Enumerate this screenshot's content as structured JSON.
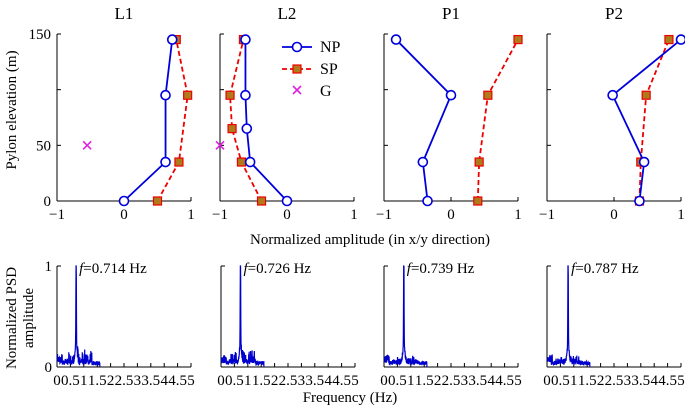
{
  "chart_data": {
    "type": "line",
    "shared": {
      "top_xlabel": "Normalized amplitude (in x/y direction)",
      "top_ylabel": "Pylon elevation (m)",
      "bottom_xlabel": "Frequency (Hz)",
      "bottom_ylabel_line1": "Normalized PSD",
      "bottom_ylabel_line2": "amplitude",
      "legend": [
        {
          "key": "np",
          "label": "NP"
        },
        {
          "key": "sp",
          "label": "SP"
        },
        {
          "key": "g",
          "label": "G"
        }
      ],
      "colors": {
        "np": "#0000dd",
        "sp": "#ee0000",
        "sp_fill": "#b07a1a",
        "g": "#e020e0",
        "psd": "#0000cc"
      },
      "top_ylim": [
        0,
        150
      ],
      "top_yticks": [
        0,
        50,
        100,
        150
      ],
      "top_ytick_labels": [
        "0",
        "50",
        "",
        "150"
      ],
      "bottom_xlim": [
        0,
        5
      ],
      "bottom_xticks": [
        "0",
        "0.5",
        "1",
        "1.5",
        "2",
        "2.5",
        "3",
        "3.5",
        "4",
        "4.5",
        "5"
      ],
      "bottom_ylim": [
        0,
        1
      ],
      "bottom_ytick_labels": [
        "0",
        "1"
      ]
    },
    "panels": [
      {
        "title": "L1",
        "xlim": [
          -1,
          1
        ],
        "xticks": [
          "−1",
          "0",
          "1"
        ],
        "np": {
          "x": [
            0,
            0.62,
            0.62,
            0.72
          ],
          "y": [
            0,
            35,
            95,
            145
          ]
        },
        "sp": {
          "x": [
            0.5,
            0.82,
            0.95,
            0.78
          ],
          "y": [
            0,
            35,
            95,
            145
          ]
        },
        "g": {
          "x": [
            -0.55
          ],
          "y": [
            50
          ]
        },
        "freq_prefix": "f",
        "freq_text": "=0.714 Hz",
        "peak_hz": 0.714
      },
      {
        "title": "L2",
        "xlim": [
          -1,
          1
        ],
        "xticks": [
          "−1",
          "0",
          "1"
        ],
        "np": {
          "x": [
            0,
            -0.55,
            -0.6,
            -0.62,
            -0.62
          ],
          "y": [
            0,
            35,
            65,
            95,
            145
          ]
        },
        "sp": {
          "x": [
            -0.38,
            -0.68,
            -0.82,
            -0.85,
            -0.65
          ],
          "y": [
            0,
            35,
            65,
            95,
            145
          ]
        },
        "g": {
          "x": [
            -1.0
          ],
          "y": [
            50
          ]
        },
        "freq_prefix": "f",
        "freq_text": "=0.726 Hz",
        "peak_hz": 0.726
      },
      {
        "title": "P1",
        "xlim": [
          -1,
          1
        ],
        "xticks": [
          "−1",
          "0",
          "1"
        ],
        "np": {
          "x": [
            -0.35,
            -0.42,
            0.0,
            -0.82
          ],
          "y": [
            0,
            35,
            95,
            145
          ]
        },
        "sp": {
          "x": [
            0.4,
            0.42,
            0.55,
            1.0
          ],
          "y": [
            0,
            35,
            95,
            145
          ]
        },
        "g": {
          "x": [],
          "y": []
        },
        "freq_prefix": "f",
        "freq_text": "=0.739 Hz",
        "peak_hz": 0.739
      },
      {
        "title": "P2",
        "xlim": [
          -1,
          1
        ],
        "xticks": [
          "−1",
          "0",
          "1"
        ],
        "np": {
          "x": [
            0.38,
            0.45,
            -0.02,
            1.0
          ],
          "y": [
            0,
            35,
            95,
            145
          ]
        },
        "sp": {
          "x": [
            0.38,
            0.4,
            0.48,
            0.82
          ],
          "y": [
            0,
            35,
            95,
            145
          ]
        },
        "g": {
          "x": [],
          "y": []
        },
        "freq_prefix": "f",
        "freq_text": "=0.787 Hz",
        "peak_hz": 0.787
      }
    ]
  }
}
